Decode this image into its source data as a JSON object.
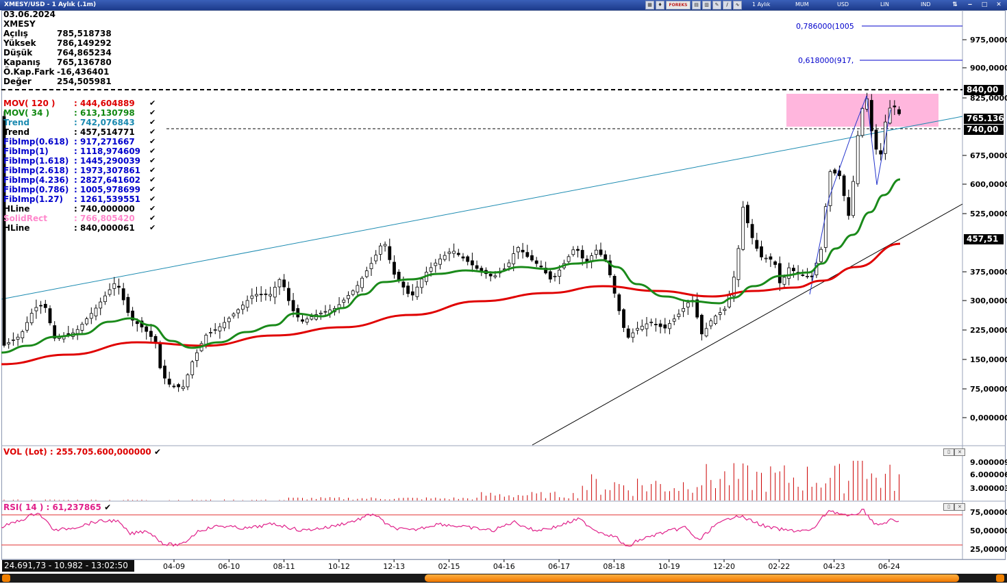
{
  "window": {
    "title": "XMESY/USD - 1 Aylık (.1m)",
    "menu": [
      "1 Aylık",
      "MUM",
      "USD",
      "LIN",
      "IND"
    ],
    "forex_badge": "FOREKS"
  },
  "info": {
    "date": "03.06.2024",
    "symbol": "XMESY",
    "rows": [
      {
        "label": "Açılış",
        "value": "785,518738"
      },
      {
        "label": "Yüksek",
        "value": "786,149292"
      },
      {
        "label": "Düşük",
        "value": "764,865234"
      },
      {
        "label": "Kapanış",
        "value": "765,136780"
      },
      {
        "label": "Ö.Kap.Fark",
        "value": "-16,436401"
      },
      {
        "label": "Değer",
        "value": "254,505981"
      }
    ]
  },
  "indicators": [
    {
      "label": "MOV( 120 )",
      "value": ": 444,604889",
      "color": "#dd0000"
    },
    {
      "label": "MOV( 34 )",
      "value": ": 613,130798",
      "color": "#118811"
    },
    {
      "label": "Trend",
      "value": ": 742,076843",
      "color": "#1a8ab0"
    },
    {
      "label": "Trend",
      "value": ": 457,514771",
      "color": "#000000"
    },
    {
      "label": "FibImp(0.618)",
      "value": ": 917,271667",
      "color": "#0000cc"
    },
    {
      "label": "FibImp(1)",
      "value": ": 1118,974609",
      "color": "#0000cc"
    },
    {
      "label": "FibImp(1.618)",
      "value": ": 1445,290039",
      "color": "#0000cc"
    },
    {
      "label": "FibImp(2.618)",
      "value": ": 1973,307861",
      "color": "#0000cc"
    },
    {
      "label": "FibImp(4.236)",
      "value": ": 2827,641602",
      "color": "#0000cc"
    },
    {
      "label": "FibImp(0.786)",
      "value": ": 1005,978699",
      "color": "#0000cc"
    },
    {
      "label": "FibImp(1.27)",
      "value": ": 1261,539551",
      "color": "#0000cc"
    },
    {
      "label": "HLine",
      "value": ": 740,000000",
      "color": "#000000"
    },
    {
      "label": "SolidRect",
      "value": ": 766,805420",
      "color": "#ff88cc"
    },
    {
      "label": "HLine",
      "value": ": 840,000061",
      "color": "#000000"
    }
  ],
  "check_glyph": "✔",
  "price_axis": {
    "ticks": [
      "975,0000",
      "900,0000",
      "825,0000",
      "675,0000",
      "600,0000",
      "525,0000",
      "375,0000",
      "300,0000",
      "225,0000",
      "150,0000",
      "75,00000",
      "0,000000"
    ],
    "tag_840": "840,00",
    "tag_765": "765.136",
    "tag_740": "740,00",
    "tag_457": "457,51"
  },
  "fib_labels": [
    "0,786000(1005",
    "0,618000(917,"
  ],
  "volume": {
    "title": "VOL (Lot)   : 255.705.600,000000",
    "ticks": [
      "9.000009",
      "6.000006",
      "3.000003"
    ]
  },
  "rsi": {
    "title": "RSI( 14 )   : 61,237865",
    "ticks": [
      "75,00000",
      "50,00000",
      "25,00000"
    ]
  },
  "x_axis": [
    "04-09",
    "06-10",
    "08-11",
    "10-12",
    "12-13",
    "02-15",
    "04-16",
    "06-17",
    "08-18",
    "10-19",
    "12-20",
    "02-22",
    "04-23",
    "06-24"
  ],
  "status": "24.691,73 - 10.982 - 13:02:50",
  "colors": {
    "ma120": "#e00000",
    "ma34": "#1a8a1a",
    "trend_blue": "#1a8ab0",
    "pink_rect": "#ffb6dd",
    "rsi": "#e0208a",
    "volume": "#cc0000"
  }
}
